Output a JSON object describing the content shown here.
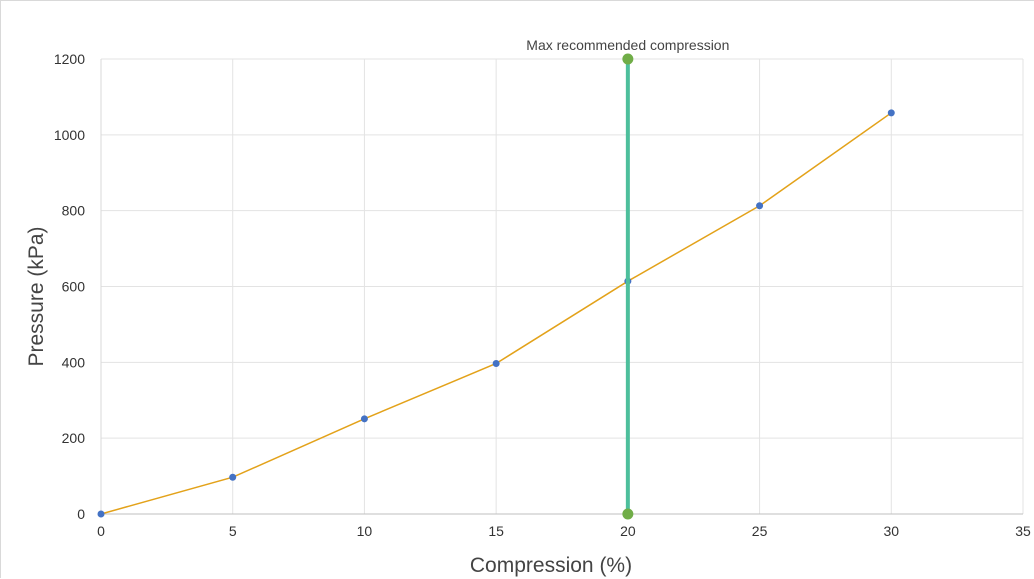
{
  "chart_data": {
    "type": "line",
    "title": "",
    "xlabel": "Compression (%)",
    "ylabel": "Pressure (kPa)",
    "xlim": [
      0,
      35
    ],
    "ylim": [
      0,
      1200
    ],
    "xticks": [
      0,
      5,
      10,
      15,
      20,
      25,
      30,
      35
    ],
    "yticks": [
      0,
      200,
      400,
      600,
      800,
      1000,
      1200
    ],
    "grid": true,
    "series": [
      {
        "x": [
          0,
          5,
          10,
          15,
          20,
          25,
          30
        ],
        "y": [
          0,
          97,
          251,
          397,
          614,
          813,
          1058
        ],
        "line_color": "#e3a21a",
        "marker_color": "#4472c4"
      }
    ],
    "reference_line": {
      "x": 20,
      "y_range": [
        0,
        1200
      ],
      "label": "Max recommended  compression",
      "line_color": "#4dbf9c",
      "marker_color": "#70ad47"
    }
  }
}
